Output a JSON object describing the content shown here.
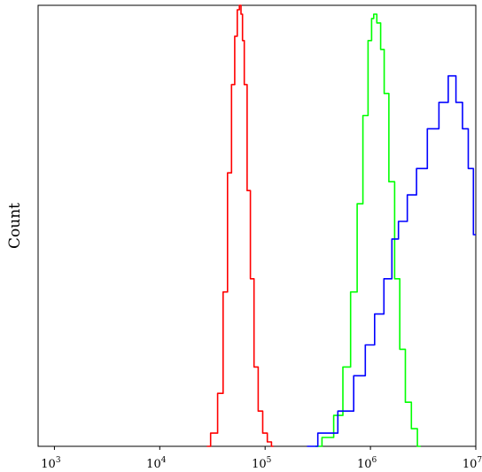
{
  "chart_data": {
    "type": "line",
    "title": "",
    "xlabel": "",
    "ylabel": "Count",
    "x_scale": "log",
    "xlim": [
      700,
      10000000
    ],
    "ylim": [
      0,
      100
    ],
    "x_ticks": [
      {
        "base": "10",
        "exp": "3",
        "value": 1000
      },
      {
        "base": "10",
        "exp": "4",
        "value": 10000
      },
      {
        "base": "10",
        "exp": "5",
        "value": 100000
      },
      {
        "base": "10",
        "exp": "6",
        "value": 1000000
      },
      {
        "base": "10",
        "exp": "7",
        "value": 10000000
      }
    ],
    "grid": false,
    "legend": "none",
    "series": [
      {
        "color": "#ff0000",
        "x": [
          28000,
          33000,
          38000,
          42000,
          46000,
          50000,
          53000,
          56000,
          58000,
          60000,
          62000,
          65000,
          70000,
          75000,
          82000,
          90000,
          100000,
          110000,
          120000
        ],
        "y": [
          0,
          3,
          12,
          35,
          62,
          82,
          93,
          99,
          100,
          98,
          92,
          82,
          58,
          38,
          18,
          8,
          3,
          1,
          0
        ]
      },
      {
        "color": "#00ff00",
        "x": [
          300000,
          400000,
          500000,
          600000,
          700000,
          800000,
          900000,
          1000000,
          1050000,
          1100000,
          1200000,
          1300000,
          1400000,
          1600000,
          1800000,
          2000000,
          2300000,
          2600000,
          3000000
        ],
        "y": [
          0,
          2,
          7,
          18,
          35,
          55,
          75,
          92,
          97,
          98,
          96,
          90,
          80,
          60,
          38,
          22,
          10,
          4,
          0
        ]
      },
      {
        "color": "#0000ff",
        "x": [
          250000,
          400000,
          600000,
          800000,
          1000000,
          1200000,
          1500000,
          1700000,
          2000000,
          2500000,
          3000000,
          4000000,
          5000000,
          6000000,
          7000000,
          8000000,
          9000000,
          10000000
        ],
        "y": [
          0,
          3,
          8,
          16,
          23,
          30,
          38,
          47,
          51,
          57,
          63,
          72,
          78,
          84,
          78,
          72,
          63,
          48
        ]
      }
    ]
  }
}
